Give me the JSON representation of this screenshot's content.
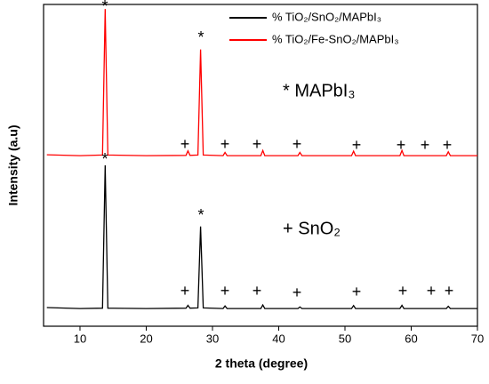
{
  "chart_data": {
    "type": "line",
    "xlabel": "2 theta (degree)",
    "ylabel": "Intensity (a.u)",
    "xlim": [
      4.5,
      70
    ],
    "xticks": [
      10,
      20,
      30,
      40,
      50,
      60,
      70
    ],
    "ylim": [
      0,
      100
    ],
    "x": [
      5,
      10,
      13.4,
      13.8,
      14.2,
      20,
      26,
      26.3,
      26.6,
      27.8,
      28.2,
      28.6,
      31.6,
      31.9,
      32.2,
      37.3,
      37.6,
      37.9,
      42.9,
      43.2,
      43.5,
      51.0,
      51.3,
      51.6,
      58.3,
      58.6,
      58.9,
      65.3,
      65.6,
      65.9,
      70
    ],
    "series": [
      {
        "name": "% TiO₂/SnO₂/MAPbI₃",
        "color": "#000000",
        "values": [
          5.8,
          5.5,
          5.6,
          50,
          5.6,
          5.5,
          5.6,
          6.5,
          5.6,
          5.7,
          31,
          5.7,
          5.5,
          6.3,
          5.5,
          5.5,
          6.6,
          5.5,
          5.5,
          6.0,
          5.5,
          5.5,
          6.4,
          5.5,
          5.5,
          6.5,
          5.5,
          5.5,
          6.2,
          5.5,
          5.5
        ]
      },
      {
        "name": "% TiO₂/Fe-SnO₂/MAPbI₃",
        "color": "#ff0000",
        "values": [
          53.3,
          53,
          53.2,
          98.6,
          53.2,
          53,
          53.1,
          54.5,
          53.1,
          53.2,
          86,
          53.2,
          53,
          54,
          53,
          53,
          54.6,
          53,
          53,
          54,
          53,
          53,
          54.4,
          53,
          53,
          54.6,
          53,
          53,
          54.2,
          53,
          53
        ]
      }
    ],
    "annotations": [
      "*",
      "*",
      "*",
      "*",
      "* MAPbI₃",
      "+ SnO₂",
      "+",
      "+",
      "+",
      "+",
      "+",
      "+",
      "+",
      "+",
      "+",
      "+",
      "+",
      "+",
      "+",
      "+",
      "+",
      "+"
    ]
  }
}
